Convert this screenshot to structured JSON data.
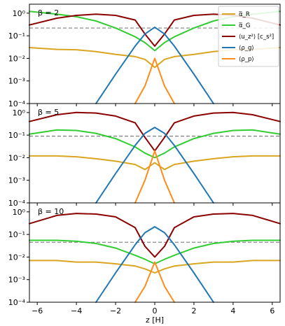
{
  "chart_data": {
    "type": "line",
    "xlabel": "z [H]",
    "x_ticks": [
      -6,
      -4,
      -2,
      0,
      2,
      4,
      6
    ],
    "xlim": [
      -6.4,
      6.4
    ],
    "y_scale": "log",
    "ylim": [
      0.0001,
      2.5
    ],
    "y_tick_labels": [
      "10⁻⁴",
      "10⁻³",
      "10⁻²",
      "10⁻¹",
      "10⁰"
    ],
    "legend": {
      "placement": "top-right",
      "entries": [
        {
          "label": "α̅_R",
          "color": "#DAA520"
        },
        {
          "label": "α̅_G",
          "color": "#32CD32"
        },
        {
          "label": "⟨u_z²⟩ [c_s²]",
          "color": "#8B0000"
        },
        {
          "label": "⟨ρ_g⟩",
          "color": "#1F77B4"
        },
        {
          "label": "⟨ρ_p⟩",
          "color": "#FF8C1A"
        }
      ]
    },
    "panels": [
      {
        "label": "β = 2",
        "dashed_level": 0.22,
        "x": [
          -6.4,
          -5,
          -4,
          -3,
          -2,
          -1,
          -0.5,
          0,
          0.5,
          1,
          2,
          3,
          4,
          5,
          6.4
        ],
        "series": [
          {
            "name": "α̅_R",
            "values": [
              0.03,
              0.025,
              0.024,
              0.02,
              0.015,
              0.012,
              0.009,
              0.004,
              0.009,
              0.012,
              0.015,
              0.02,
              0.024,
              0.025,
              0.03
            ]
          },
          {
            "name": "α̅_G",
            "values": [
              1.2,
              0.9,
              0.7,
              0.45,
              0.22,
              0.09,
              0.05,
              0.022,
              0.05,
              0.09,
              0.22,
              0.45,
              0.7,
              0.9,
              1.2
            ]
          },
          {
            "name": "⟨u_z²⟩ [c_s²]",
            "values": [
              0.3,
              0.6,
              0.8,
              0.9,
              0.8,
              0.5,
              0.12,
              0.035,
              0.12,
              0.5,
              0.8,
              0.9,
              0.8,
              0.6,
              0.3
            ]
          },
          {
            "name": "⟨ρ_g⟩",
            "values": [
              null,
              null,
              null,
              0.0001,
              0.002,
              0.035,
              0.12,
              0.24,
              0.12,
              0.035,
              0.002,
              0.0001,
              null,
              null,
              null
            ]
          },
          {
            "name": "⟨ρ_p⟩",
            "values": [
              null,
              null,
              null,
              null,
              null,
              0.0001,
              0.0006,
              0.01,
              0.0006,
              0.0001,
              null,
              null,
              null,
              null,
              null
            ]
          }
        ]
      },
      {
        "label": "β = 5",
        "dashed_level": 0.09,
        "x": [
          -6.4,
          -5,
          -4,
          -3,
          -2,
          -1,
          -0.5,
          0,
          0.5,
          1,
          2,
          3,
          4,
          5,
          6.4
        ],
        "series": [
          {
            "name": "α̅_R",
            "values": [
              0.012,
              0.012,
              0.011,
              0.009,
              0.007,
              0.005,
              0.003,
              0.006,
              0.003,
              0.005,
              0.007,
              0.009,
              0.011,
              0.012,
              0.012
            ]
          },
          {
            "name": "α̅_G",
            "values": [
              0.11,
              0.17,
              0.16,
              0.12,
              0.07,
              0.03,
              0.016,
              0.01,
              0.016,
              0.03,
              0.07,
              0.12,
              0.16,
              0.17,
              0.11
            ]
          },
          {
            "name": "⟨u_z²⟩ [c_s²]",
            "values": [
              0.4,
              0.8,
              1.0,
              0.95,
              0.7,
              0.35,
              0.08,
              0.02,
              0.08,
              0.35,
              0.7,
              0.95,
              1.0,
              0.8,
              0.4
            ]
          },
          {
            "name": "⟨ρ_g⟩",
            "values": [
              null,
              null,
              null,
              0.0001,
              0.002,
              0.035,
              0.12,
              0.22,
              0.12,
              0.035,
              0.002,
              0.0001,
              null,
              null,
              null
            ]
          },
          {
            "name": "⟨ρ_p⟩",
            "values": [
              null,
              null,
              null,
              null,
              null,
              0.0001,
              0.001,
              0.02,
              0.001,
              0.0001,
              null,
              null,
              null,
              null,
              null
            ]
          }
        ]
      },
      {
        "label": "β = 10",
        "dashed_level": 0.045,
        "x": [
          -6.4,
          -5,
          -4,
          -3,
          -2,
          -1,
          -0.5,
          0,
          0.5,
          1,
          2,
          3,
          4,
          5,
          6.4
        ],
        "series": [
          {
            "name": "α̅_R",
            "values": [
              0.007,
              0.007,
              0.006,
              0.006,
              0.005,
              0.004,
              0.003,
              0.002,
              0.003,
              0.004,
              0.005,
              0.006,
              0.006,
              0.007,
              0.007
            ]
          },
          {
            "name": "α̅_G",
            "values": [
              0.055,
              0.055,
              0.05,
              0.04,
              0.025,
              0.012,
              0.008,
              0.005,
              0.008,
              0.012,
              0.025,
              0.04,
              0.05,
              0.055,
              0.055
            ]
          },
          {
            "name": "⟨u_z²⟩ [c_s²]",
            "values": [
              0.3,
              0.7,
              0.85,
              0.8,
              0.6,
              0.2,
              0.03,
              0.01,
              0.03,
              0.2,
              0.6,
              0.8,
              0.85,
              0.7,
              0.3
            ]
          },
          {
            "name": "⟨ρ_g⟩",
            "values": [
              null,
              null,
              null,
              0.0001,
              0.002,
              0.035,
              0.12,
              0.22,
              0.12,
              0.035,
              0.002,
              0.0001,
              null,
              null,
              null
            ]
          },
          {
            "name": "⟨ρ_p⟩",
            "values": [
              null,
              null,
              null,
              null,
              null,
              0.0001,
              0.0005,
              0.006,
              0.0005,
              0.0001,
              null,
              null,
              null,
              null,
              null
            ]
          }
        ]
      }
    ]
  }
}
